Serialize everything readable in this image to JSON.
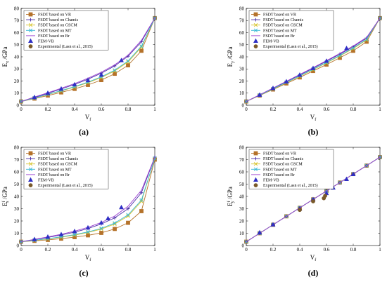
{
  "chart_data": [
    {
      "type": "line",
      "label": "(a)",
      "ylabel": "E",
      "ylabel_sub": "x",
      "ylabel_sup": "",
      "ylabel_unit": "/GPa",
      "xlabel": "V",
      "xlabel_sub": "f",
      "xlim": [
        0,
        1
      ],
      "ylim": [
        0,
        80
      ],
      "xticks": [
        "0",
        "0.2",
        "0.4",
        "0.6",
        "0.8",
        "1"
      ],
      "yticks": [
        "0",
        "10",
        "20",
        "30",
        "40",
        "50",
        "60",
        "70",
        "80"
      ],
      "grid": false,
      "legend": "top-left",
      "x": [
        0,
        0.1,
        0.2,
        0.3,
        0.4,
        0.5,
        0.6,
        0.7,
        0.8,
        0.9,
        1.0
      ],
      "series": [
        {
          "name": "FSDT based on VR",
          "color": "#b5722a",
          "marker": "square",
          "values": [
            3.1,
            5.5,
            8.0,
            10.6,
            13.5,
            16.8,
            20.8,
            26.0,
            33.0,
            45.0,
            72
          ]
        },
        {
          "name": "FSDT based on Chamis",
          "color": "#4b2fa8",
          "marker": "plus",
          "values": [
            3.1,
            6.4,
            9.8,
            13.4,
            17.2,
            21.5,
            26.5,
            32.5,
            40.5,
            52.5,
            72
          ]
        },
        {
          "name": "FSDT based on GSCM",
          "color": "#d6c32a",
          "marker": "x",
          "values": [
            3.1,
            5.9,
            8.8,
            11.8,
            15.0,
            18.6,
            22.9,
            28.3,
            35.8,
            48.0,
            72
          ]
        },
        {
          "name": "FSDT based on MT",
          "color": "#36b8d6",
          "marker": "x",
          "values": [
            3.1,
            6.0,
            9.0,
            12.1,
            15.4,
            19.1,
            23.5,
            29.0,
            36.6,
            48.8,
            72
          ]
        },
        {
          "name": "FSDT based on Br",
          "color": "#9b3fd1",
          "marker": "none",
          "values": [
            3.1,
            6.8,
            10.3,
            14.0,
            17.9,
            22.3,
            27.3,
            33.4,
            41.4,
            53.6,
            72
          ]
        }
      ],
      "points": [
        {
          "name": "FEM-VB",
          "color": "#2f2fc4",
          "marker": "triangle",
          "x": [
            0.1,
            0.2,
            0.3,
            0.4,
            0.5,
            0.6,
            0.75
          ],
          "y": [
            6.5,
            10.0,
            13.5,
            17.0,
            20.5,
            25.0,
            37.0
          ]
        },
        {
          "name": "Experimental (Lasn et al., 2015)",
          "color": "#7a5a2a",
          "marker": "circle",
          "x": [],
          "y": []
        }
      ]
    },
    {
      "type": "line",
      "label": "(b)",
      "ylabel": "E",
      "ylabel_sub": "y",
      "ylabel_sup": "",
      "ylabel_unit": "/GPa",
      "xlabel": "V",
      "xlabel_sub": "f",
      "xlim": [
        0,
        1
      ],
      "ylim": [
        0,
        80
      ],
      "xticks": [
        "0",
        "0.2",
        "0.4",
        "0.6",
        "0.8",
        "1"
      ],
      "yticks": [
        "0",
        "10",
        "20",
        "30",
        "40",
        "50",
        "60",
        "70",
        "80"
      ],
      "grid": false,
      "legend": "top-left",
      "x": [
        0,
        0.1,
        0.2,
        0.3,
        0.4,
        0.5,
        0.6,
        0.7,
        0.8,
        0.9,
        1.0
      ],
      "series": [
        {
          "name": "FSDT based on VR",
          "color": "#b5722a",
          "marker": "square",
          "values": [
            3.1,
            8.0,
            13.0,
            18.0,
            23.0,
            28.3,
            33.6,
            39.2,
            45.0,
            52.5,
            72
          ]
        },
        {
          "name": "FSDT based on Chamis",
          "color": "#4b2fa8",
          "marker": "plus",
          "values": [
            3.1,
            8.5,
            14.0,
            19.5,
            25.0,
            30.6,
            36.4,
            42.2,
            48.3,
            55.5,
            72
          ]
        },
        {
          "name": "FSDT based on GSCM",
          "color": "#d6c32a",
          "marker": "x",
          "values": [
            3.1,
            8.2,
            13.4,
            18.7,
            24.0,
            29.4,
            35.0,
            40.7,
            46.8,
            54.0,
            72
          ]
        },
        {
          "name": "FSDT based on MT",
          "color": "#36b8d6",
          "marker": "x",
          "values": [
            3.1,
            8.3,
            13.6,
            18.9,
            24.3,
            29.8,
            35.4,
            41.2,
            47.3,
            54.5,
            72
          ]
        },
        {
          "name": "FSDT based on Br",
          "color": "#9b3fd1",
          "marker": "none",
          "values": [
            3.1,
            8.6,
            14.2,
            19.8,
            25.4,
            31.1,
            36.9,
            42.8,
            49.0,
            56.0,
            72
          ]
        }
      ],
      "points": [
        {
          "name": "FEM-VB",
          "color": "#2f2fc4",
          "marker": "triangle",
          "x": [
            0.1,
            0.2,
            0.3,
            0.4,
            0.5,
            0.6,
            0.75
          ],
          "y": [
            8.5,
            14.0,
            19.5,
            25.0,
            30.5,
            36.5,
            47.0
          ]
        },
        {
          "name": "Experimental (Lasn et al., 2015)",
          "color": "#7a5a2a",
          "marker": "circle",
          "x": [],
          "y": []
        }
      ]
    },
    {
      "type": "line",
      "label": "(c)",
      "ylabel": "E",
      "ylabel_sub": "x",
      "ylabel_sup": "f",
      "ylabel_unit": "/GPa",
      "xlabel": "V",
      "xlabel_sub": "f",
      "xlim": [
        0,
        1
      ],
      "ylim": [
        0,
        80
      ],
      "xticks": [
        "0",
        "0.2",
        "0.4",
        "0.6",
        "0.8",
        "1"
      ],
      "yticks": [
        "0",
        "10",
        "20",
        "30",
        "40",
        "50",
        "60",
        "70",
        "80"
      ],
      "grid": false,
      "legend": "top-left",
      "x": [
        0,
        0.1,
        0.2,
        0.3,
        0.4,
        0.5,
        0.6,
        0.7,
        0.8,
        0.9,
        1.0
      ],
      "series": [
        {
          "name": "FSDT based on VR",
          "color": "#b5722a",
          "marker": "square",
          "values": [
            3.1,
            3.8,
            4.6,
            5.6,
            6.8,
            8.3,
            10.3,
            13.5,
            18.5,
            28.0,
            70
          ]
        },
        {
          "name": "FSDT based on Chamis",
          "color": "#4b2fa8",
          "marker": "plus",
          "values": [
            3.1,
            4.8,
            6.6,
            8.6,
            10.9,
            13.8,
            17.6,
            22.5,
            30.0,
            43.0,
            72
          ]
        },
        {
          "name": "FSDT based on GSCM",
          "color": "#d6c32a",
          "marker": "x",
          "values": [
            3.1,
            4.2,
            5.4,
            6.8,
            8.5,
            10.6,
            13.4,
            17.5,
            24.0,
            36.0,
            71
          ]
        },
        {
          "name": "FSDT based on MT",
          "color": "#36b8d6",
          "marker": "x",
          "values": [
            3.1,
            4.3,
            5.6,
            7.1,
            8.9,
            11.1,
            14.0,
            18.3,
            25.0,
            37.0,
            71
          ]
        },
        {
          "name": "FSDT based on Br",
          "color": "#9b3fd1",
          "marker": "none",
          "values": [
            3.1,
            5.0,
            7.0,
            9.2,
            11.7,
            14.8,
            18.8,
            24.0,
            32.0,
            45.0,
            72
          ]
        }
      ],
      "points": [
        {
          "name": "FEM-VB",
          "color": "#2f2fc4",
          "marker": "triangle",
          "x": [
            0.1,
            0.2,
            0.3,
            0.4,
            0.5,
            0.6,
            0.65,
            0.75
          ],
          "y": [
            5.0,
            7.0,
            9.0,
            11.5,
            14.5,
            18.5,
            22.0,
            31.0
          ]
        },
        {
          "name": "Experimental (Lasn et al., 2015)",
          "color": "#7a5a2a",
          "marker": "circle",
          "x": [],
          "y": []
        }
      ]
    },
    {
      "type": "line",
      "label": "(d)",
      "ylabel": "E",
      "ylabel_sub": "y",
      "ylabel_sup": "f",
      "ylabel_unit": "/GPa",
      "xlabel": "V",
      "xlabel_sub": "f",
      "xlim": [
        0,
        1
      ],
      "ylim": [
        0,
        80
      ],
      "xticks": [
        "0",
        "0.2",
        "0.4",
        "0.6",
        "0.8",
        "1"
      ],
      "yticks": [
        "0",
        "10",
        "20",
        "30",
        "40",
        "50",
        "60",
        "70",
        "80"
      ],
      "grid": false,
      "legend": "top-left",
      "x": [
        0,
        0.1,
        0.2,
        0.3,
        0.4,
        0.5,
        0.6,
        0.7,
        0.8,
        0.9,
        1.0
      ],
      "series": [
        {
          "name": "FSDT based on VR",
          "color": "#b5722a",
          "marker": "square",
          "values": [
            3.1,
            10.0,
            16.9,
            23.8,
            30.7,
            37.6,
            44.4,
            51.3,
            58.2,
            65.1,
            72
          ]
        },
        {
          "name": "FSDT based on Chamis",
          "color": "#4b2fa8",
          "marker": "plus",
          "values": [
            3.1,
            10.0,
            16.9,
            23.8,
            30.7,
            37.6,
            44.4,
            51.3,
            58.2,
            65.1,
            72
          ]
        },
        {
          "name": "FSDT based on GSCM",
          "color": "#d6c32a",
          "marker": "x",
          "values": [
            3.1,
            10.0,
            16.9,
            23.8,
            30.7,
            37.6,
            44.4,
            51.3,
            58.2,
            65.1,
            72
          ]
        },
        {
          "name": "FSDT based on MT",
          "color": "#36b8d6",
          "marker": "x",
          "values": [
            3.1,
            10.0,
            16.9,
            23.8,
            30.7,
            37.6,
            44.4,
            51.3,
            58.2,
            65.1,
            72
          ]
        },
        {
          "name": "FSDT based on Br",
          "color": "#9b3fd1",
          "marker": "none",
          "values": [
            3.1,
            10.0,
            16.9,
            23.8,
            30.7,
            37.6,
            44.4,
            51.3,
            58.2,
            65.1,
            72
          ]
        }
      ],
      "points": [
        {
          "name": "FEM-VB",
          "color": "#2f2fc4",
          "marker": "triangle",
          "x": [
            0.1,
            0.2,
            0.4,
            0.5,
            0.6,
            0.65,
            0.75,
            0.8
          ],
          "y": [
            10.5,
            17.0,
            30.0,
            37.5,
            42.5,
            47.0,
            54.0,
            58.0
          ]
        },
        {
          "name": "Experimental (Lasn et al., 2015)",
          "color": "#7a5a2a",
          "marker": "circle",
          "x": [
            0.4,
            0.5,
            0.58,
            0.59
          ],
          "y": [
            29.0,
            36.0,
            38.5,
            40.5
          ]
        }
      ]
    }
  ]
}
